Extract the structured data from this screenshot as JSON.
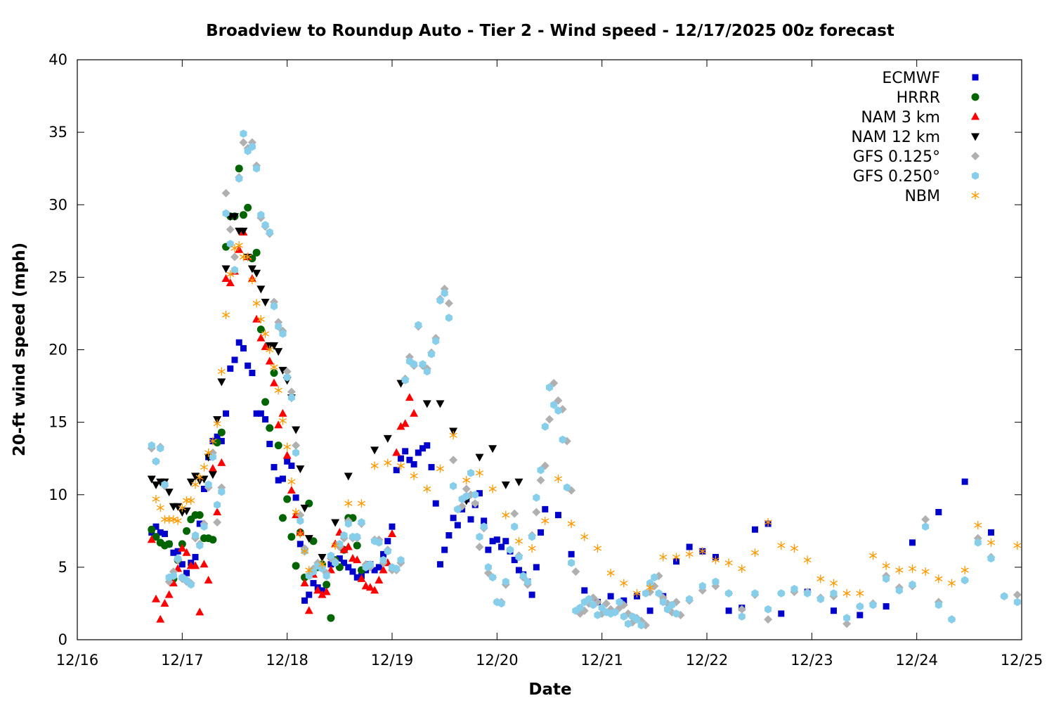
{
  "chart_data": {
    "type": "scatter",
    "title": "Broadview to Roundup Auto - Tier 2 - Wind speed - 12/17/2025 00z forecast",
    "xlabel": "Date",
    "ylabel": "20-ft wind speed (mph)",
    "x_units": "hours since 12/16 00z",
    "xlim": [
      0,
      216
    ],
    "ylim": [
      0,
      40
    ],
    "x_ticks": [
      {
        "value": 0,
        "label": "12/16"
      },
      {
        "value": 24,
        "label": "12/17"
      },
      {
        "value": 48,
        "label": "12/18"
      },
      {
        "value": 72,
        "label": "12/19"
      },
      {
        "value": 96,
        "label": "12/20"
      },
      {
        "value": 120,
        "label": "12/21"
      },
      {
        "value": 144,
        "label": "12/22"
      },
      {
        "value": 168,
        "label": "12/23"
      },
      {
        "value": 192,
        "label": "12/24"
      },
      {
        "value": 216,
        "label": "12/25"
      }
    ],
    "y_ticks": [
      0,
      5,
      10,
      15,
      20,
      25,
      30,
      35,
      40
    ],
    "grid": false,
    "legend_position": "top-right",
    "series": [
      {
        "name": "ECMWF",
        "marker": "square",
        "color": "#0000cc",
        "segments": [
          {
            "x_start": 17,
            "x_step": 1,
            "y": [
              7.4,
              7.8,
              7.4,
              7.3,
              6.6,
              6.0,
              6.1,
              5.2,
              4.6,
              5.3,
              5.7,
              8.0,
              10.4,
              12.6,
              13.7,
              14.0,
              13.7,
              15.6,
              18.7,
              19.3,
              20.5,
              20.1,
              18.9,
              18.4,
              15.6,
              15.6,
              15.2,
              13.5,
              11.9,
              11.0,
              11.1,
              12.3,
              12.0,
              9.8,
              6.6,
              2.7,
              3.1,
              3.9,
              3.6,
              3.4,
              4.5,
              5.2,
              5.5,
              5.6,
              5.3,
              5.0,
              4.7,
              4.3,
              4.4,
              4.8,
              5.2,
              4.8,
              5.0
            ]
          },
          {
            "x_start": 70,
            "x_step": 1,
            "y": [
              5.9,
              6.8,
              7.8,
              11.7,
              12.5,
              13.0,
              12.4,
              12.1,
              12.9,
              13.2,
              13.4,
              11.9,
              9.4,
              5.2,
              6.2,
              7.2,
              8.4,
              7.9,
              9.0,
              9.7,
              8.3,
              9.3,
              10.1,
              8.2,
              6.2,
              6.8,
              6.9,
              6.4,
              6.8,
              6.1,
              5.5,
              4.8,
              4.5,
              4.0,
              3.1,
              5.0,
              7.4,
              9.0
            ]
          },
          {
            "x_start": 110,
            "x_step": 3,
            "y": [
              8.6,
              5.9,
              3.4,
              2.6,
              3.0,
              2.7,
              3.0,
              2.0,
              3.0,
              5.4,
              6.4,
              6.1,
              5.7,
              2.0,
              2.2,
              7.6,
              8.0,
              1.8
            ]
          },
          {
            "x_start": 167,
            "x_step": 6,
            "y": [
              3.3,
              2.0,
              1.7,
              2.3,
              6.7,
              8.8,
              10.9,
              7.4
            ]
          }
        ]
      },
      {
        "name": "HRRR",
        "marker": "circle",
        "color": "#006400",
        "segments": [
          {
            "x_start": 17,
            "x_step": 1,
            "y": [
              7.6,
              7.1,
              6.7,
              6.5,
              6.6,
              4.2,
              5.5,
              6.6,
              7.5,
              8.3,
              8.6,
              8.6,
              7.0,
              7.0,
              6.9,
              13.6,
              14.3,
              27.1,
              29.2,
              29.2,
              32.5,
              29.3,
              29.8,
              26.3,
              26.7,
              21.4,
              16.4,
              14.6,
              18.4,
              13.4,
              8.4,
              9.7,
              7.1,
              5.1,
              7.4,
              4.3,
              9.4,
              6.8,
              5.0,
              5.2,
              3.8,
              1.5,
              5.5,
              5.0,
              6.2,
              8.4,
              8.4,
              6.5,
              4.8
            ]
          }
        ]
      },
      {
        "name": "NAM 3 km",
        "marker": "triangle-up",
        "color": "#ff0000",
        "segments": [
          {
            "x_start": 17,
            "x_step": 1,
            "y": [
              6.9,
              2.8,
              1.4,
              2.5,
              3.1,
              3.9,
              4.9,
              6.3,
              6.0,
              5.1,
              5.1,
              1.9,
              5.2,
              4.1,
              11.8,
              8.8,
              12.2,
              24.9,
              24.6,
              25.4,
              26.9,
              28.1,
              26.4,
              24.9,
              22.1,
              20.8,
              20.2,
              19.2,
              17.7,
              14.8,
              15.6,
              12.7,
              10.3,
              8.6,
              7.4,
              3.9,
              2.0,
              4.5,
              3.4,
              3.1,
              3.3,
              4.8,
              6.6,
              7.4,
              6.2,
              6.4,
              5.6,
              5.5,
              4.2,
              3.7,
              3.6,
              3.4,
              4.1,
              4.8,
              5.3,
              7.3,
              12.9,
              14.7,
              14.9,
              16.7,
              15.6
            ]
          }
        ]
      },
      {
        "name": "NAM 12 km",
        "marker": "triangle-down",
        "color": "#000000",
        "segments": [
          {
            "x_start": 17,
            "x_step": 1,
            "y": [
              11.1,
              10.7,
              10.9,
              10.9,
              10.2,
              9.2,
              9.2,
              8.8,
              8.9,
              10.9,
              11.3,
              11.0,
              11.1,
              12.6,
              11.4,
              15.2,
              17.8,
              25.6,
              29.2,
              29.2,
              28.2,
              28.2,
              26.4,
              25.6,
              25.3,
              24.2,
              23.3,
              20.3,
              20.3,
              19.9,
              18.6,
              17.9,
              16.7,
              14.5,
              11.8,
              9.1,
              7.0
            ]
          },
          {
            "x_start": 56,
            "x_step": 3,
            "y": [
              5.7,
              8.1,
              11.3,
              null,
              13.1,
              13.9,
              17.7,
              null,
              16.3,
              16.3,
              14.4,
              9.6,
              12.6,
              13.2,
              10.7,
              10.9
            ]
          }
        ]
      },
      {
        "name": "GFS 0.125°",
        "marker": "diamond",
        "color": "#b0b0b0",
        "segments": [
          {
            "x_start": 17,
            "x_step": 1,
            "y": [
              13.2,
              12.3,
              13.3,
              10.6,
              4.0,
              4.7,
              5.5,
              4.2,
              4.0,
              3.9,
              7.0,
              6.6,
              8.0,
              10.5,
              12.9,
              8.1,
              10.5,
              30.8,
              28.3,
              26.4,
              31.9,
              34.3,
              33.9,
              34.3,
              32.7,
              29.1,
              28.5,
              28.0,
              23.3,
              21.9,
              21.3,
              18.5,
              17.1,
              13.4,
              8.6,
              6.3,
              4.5,
              4.9,
              5.3,
              5.0,
              4.6,
              5.6,
              5.4,
              6.4,
              7.0,
              8.2,
              7.0,
              7.0,
              8.0,
              5.2,
              5.0,
              6.9,
              6.9,
              5.3,
              6.2,
              4.8,
              4.8,
              5.3,
              18.0,
              19.5,
              18.9,
              21.6,
              18.9,
              18.7,
              19.8,
              20.8,
              23.5,
              24.2,
              23.2,
              12.4,
              9.0,
              9.2,
              10.4,
              10.0,
              9.4,
              6.4,
              7.7,
              4.6,
              4.3,
              2.6,
              2.6,
              3.8,
              6.2,
              8.7,
              5.8,
              4.3,
              3.8,
              7.2,
              8.8,
              11.0,
              12.0,
              15.2,
              17.7,
              16.5,
              15.9,
              13.7,
              10.3,
              4.7,
              1.8,
              2.0,
              2.5,
              2.9,
              2.6,
              1.8,
              2.5,
              2.1,
              1.9,
              2.2,
              2.4,
              1.8,
              1.2,
              1.5,
              1.3,
              1.0,
              3.3,
              3.7,
              4.4,
              2.9,
              2.5,
              1.9,
              2.6,
              1.7
            ]
          },
          {
            "x_start": 140,
            "x_step": 3,
            "y": [
              2.7,
              3.4,
              3.7,
              3.2,
              2.1,
              3.1,
              1.4,
              3.2,
              3.3,
              3.3,
              2.9,
              3.0,
              1.1,
              2.3,
              2.5,
              4.4,
              3.6,
              3.7,
              8.3,
              2.6,
              1.4,
              4.1,
              7.0,
              5.7,
              3.0,
              3.1
            ]
          }
        ]
      },
      {
        "name": "GFS 0.250°",
        "marker": "hexagon",
        "color": "#87ceeb",
        "segments": [
          {
            "x_start": 17,
            "x_step": 1,
            "y": [
              13.4,
              12.3,
              13.2,
              10.7,
              4.3,
              4.4,
              5.6,
              4.3,
              4.1,
              3.8,
              7.2,
              6.5,
              7.8,
              10.7,
              12.6,
              9.3,
              10.2,
              29.4,
              27.3,
              25.5,
              31.8,
              34.9,
              33.7,
              34.0,
              32.5,
              29.3,
              28.6,
              28.1,
              23.0,
              21.6,
              21.1,
              18.1,
              16.7,
              12.9,
              8.2,
              6.1,
              4.4,
              4.7,
              5.1,
              4.9,
              4.4,
              5.8,
              5.3,
              6.6,
              7.2,
              8.0,
              7.1,
              7.1,
              8.1,
              5.0,
              5.2,
              6.8,
              6.7,
              5.5,
              6.1,
              5.0,
              4.9,
              5.5,
              17.9,
              19.2,
              19.0,
              21.7,
              19.0,
              18.5,
              19.7,
              20.6,
              23.4,
              23.9,
              22.2,
              10.6,
              9.0,
              9.7,
              9.9,
              11.5,
              10.0,
              7.1,
              7.8,
              5.0,
              4.3,
              2.6,
              2.5,
              4.0,
              6.2,
              7.8,
              5.7,
              4.4,
              4.0,
              7.1,
              9.8,
              11.7,
              14.7,
              17.4,
              16.2,
              15.8,
              13.8,
              10.5,
              5.3,
              2.0,
              2.2,
              2.6,
              2.8,
              2.4,
              1.7,
              2.2,
              1.9,
              1.8,
              1.9,
              2.6,
              1.6,
              1.1,
              1.6,
              1.4,
              1.0,
              3.2,
              3.9,
              4.3,
              3.2,
              2.6,
              2.1,
              2.4,
              1.8
            ]
          },
          {
            "x_start": 140,
            "x_step": 3,
            "y": [
              2.8,
              3.7,
              4.0,
              3.2,
              1.6,
              3.2,
              2.1,
              3.2,
              3.5,
              3.2,
              2.8,
              3.2,
              1.5,
              2.3,
              2.4,
              4.2,
              3.4,
              3.8,
              7.8,
              2.4,
              1.4,
              4.1,
              6.7,
              5.6,
              3.0,
              2.6
            ]
          }
        ]
      },
      {
        "name": "NBM",
        "marker": "asterisk",
        "color": "#ff9900",
        "segments": [
          {
            "x_start": 18,
            "x_step": 1,
            "y": [
              9.7,
              9.1,
              8.3,
              8.3,
              8.3,
              8.2,
              9.1,
              9.6,
              9.6,
              10.7,
              11.2,
              11.9,
              12.9,
              13.7,
              14.9,
              18.5,
              22.4,
              25.2,
              27.0,
              27.2,
              26.4,
              26.4,
              24.8,
              23.2,
              22.1,
              21.1,
              20.0,
              18.8,
              17.2,
              15.1,
              13.3,
              10.9,
              8.8,
              7.3,
              6.1,
              4.8
            ]
          },
          {
            "x_start": 56,
            "x_step": 3,
            "y": [
              5.2,
              6.5,
              9.4,
              9.4,
              12.0,
              12.2,
              12.0,
              11.3,
              10.4,
              11.8,
              14.1,
              11.0,
              11.5,
              10.4,
              8.6,
              6.8,
              6.3,
              8.2,
              11.1,
              8.0,
              7.1,
              6.3,
              4.6,
              3.9,
              3.2,
              3.6,
              5.7,
              5.7,
              5.9,
              6.1,
              5.5,
              5.3,
              4.9,
              6.0,
              8.1,
              6.5,
              6.3,
              5.5,
              4.2,
              3.9,
              3.2,
              3.2,
              5.8,
              5.1,
              4.8,
              4.9,
              4.7,
              4.2,
              3.9,
              4.8,
              7.9,
              6.7,
              null,
              6.5
            ]
          }
        ]
      }
    ]
  }
}
